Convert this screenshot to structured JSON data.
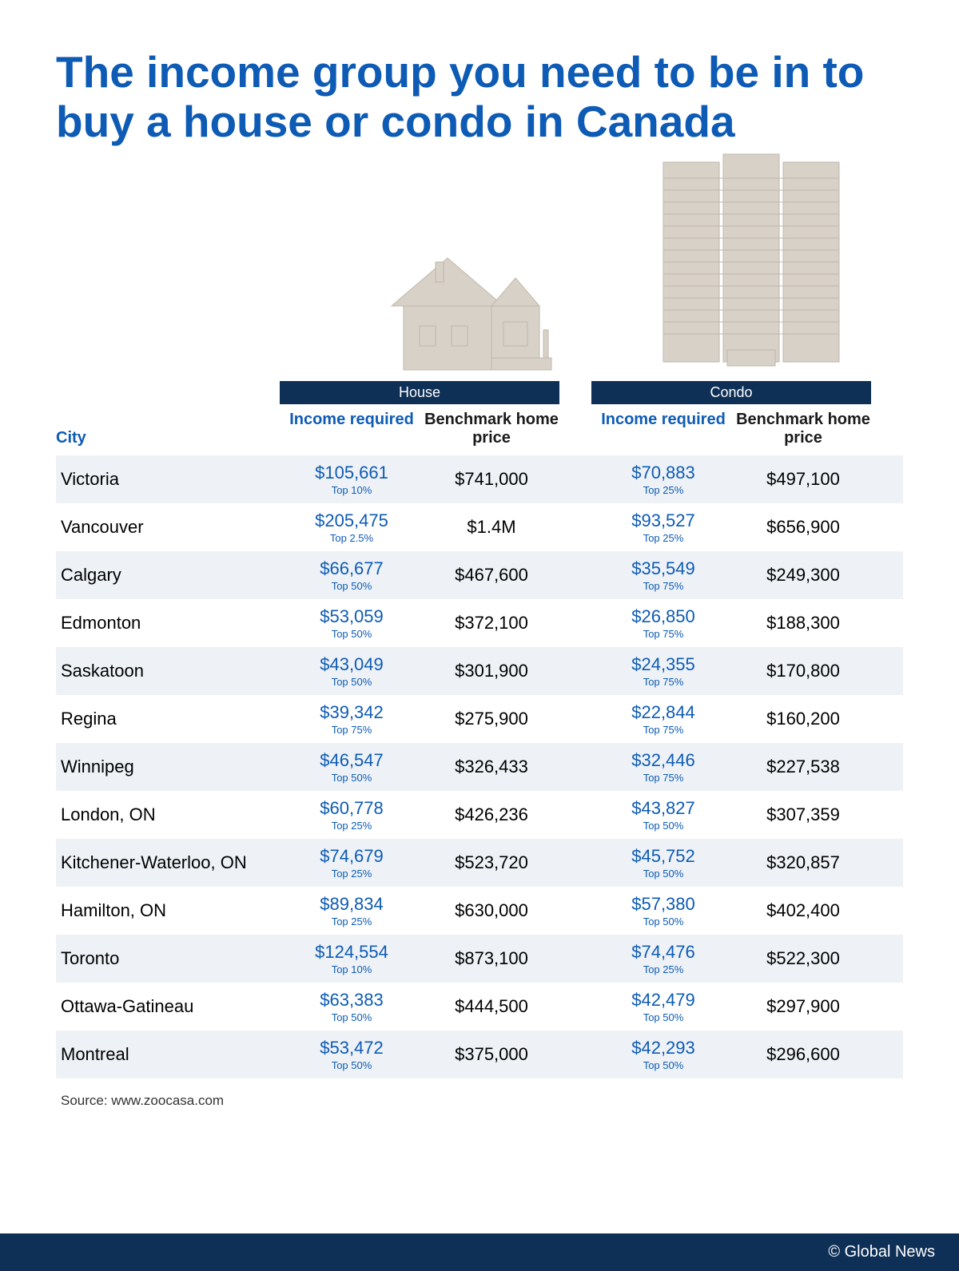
{
  "title": "The income group you need to be in to buy a house or condo in Canada",
  "colors": {
    "brand_blue": "#0d5bb5",
    "dark_navy": "#0e2f56",
    "text_dark": "#1a1a1a",
    "row_alt": "#eef2f7",
    "building_fill": "#d8d1c8",
    "building_stroke": "#bfb7ab"
  },
  "header": {
    "house_label": "House",
    "condo_label": "Condo",
    "city_label": "City",
    "income_label": "Income required",
    "benchmark_label": "Benchmark home price"
  },
  "rows": [
    {
      "city": "Victoria",
      "house_income": "$105,661",
      "house_tier": "Top 10%",
      "house_bench": "$741,000",
      "condo_income": "$70,883",
      "condo_tier": "Top 25%",
      "condo_bench": "$497,100"
    },
    {
      "city": "Vancouver",
      "house_income": "$205,475",
      "house_tier": "Top 2.5%",
      "house_bench": "$1.4M",
      "condo_income": "$93,527",
      "condo_tier": "Top 25%",
      "condo_bench": "$656,900"
    },
    {
      "city": "Calgary",
      "house_income": "$66,677",
      "house_tier": "Top 50%",
      "house_bench": "$467,600",
      "condo_income": "$35,549",
      "condo_tier": "Top 75%",
      "condo_bench": "$249,300"
    },
    {
      "city": "Edmonton",
      "house_income": "$53,059",
      "house_tier": "Top 50%",
      "house_bench": "$372,100",
      "condo_income": "$26,850",
      "condo_tier": "Top 75%",
      "condo_bench": "$188,300"
    },
    {
      "city": "Saskatoon",
      "house_income": "$43,049",
      "house_tier": "Top 50%",
      "house_bench": "$301,900",
      "condo_income": "$24,355",
      "condo_tier": "Top 75%",
      "condo_bench": "$170,800"
    },
    {
      "city": "Regina",
      "house_income": "$39,342",
      "house_tier": "Top 75%",
      "house_bench": "$275,900",
      "condo_income": "$22,844",
      "condo_tier": "Top 75%",
      "condo_bench": "$160,200"
    },
    {
      "city": "Winnipeg",
      "house_income": "$46,547",
      "house_tier": "Top 50%",
      "house_bench": "$326,433",
      "condo_income": "$32,446",
      "condo_tier": "Top 75%",
      "condo_bench": "$227,538"
    },
    {
      "city": "London, ON",
      "house_income": "$60,778",
      "house_tier": "Top 25%",
      "house_bench": "$426,236",
      "condo_income": "$43,827",
      "condo_tier": "Top 50%",
      "condo_bench": "$307,359"
    },
    {
      "city": "Kitchener-Waterloo, ON",
      "house_income": "$74,679",
      "house_tier": "Top 25%",
      "house_bench": "$523,720",
      "condo_income": "$45,752",
      "condo_tier": "Top 50%",
      "condo_bench": "$320,857"
    },
    {
      "city": "Hamilton, ON",
      "house_income": "$89,834",
      "house_tier": "Top 25%",
      "house_bench": "$630,000",
      "condo_income": "$57,380",
      "condo_tier": "Top 50%",
      "condo_bench": "$402,400"
    },
    {
      "city": "Toronto",
      "house_income": "$124,554",
      "house_tier": "Top 10%",
      "house_bench": "$873,100",
      "condo_income": "$74,476",
      "condo_tier": "Top 25%",
      "condo_bench": "$522,300"
    },
    {
      "city": "Ottawa-Gatineau",
      "house_income": "$63,383",
      "house_tier": "Top 50%",
      "house_bench": "$444,500",
      "condo_income": "$42,479",
      "condo_tier": "Top 50%",
      "condo_bench": "$297,900"
    },
    {
      "city": "Montreal",
      "house_income": "$53,472",
      "house_tier": "Top 50%",
      "house_bench": "$375,000",
      "condo_income": "$42,293",
      "condo_tier": "Top 50%",
      "condo_bench": "$296,600"
    }
  ],
  "source": "Source: www.zoocasa.com",
  "footer": "© Global News"
}
